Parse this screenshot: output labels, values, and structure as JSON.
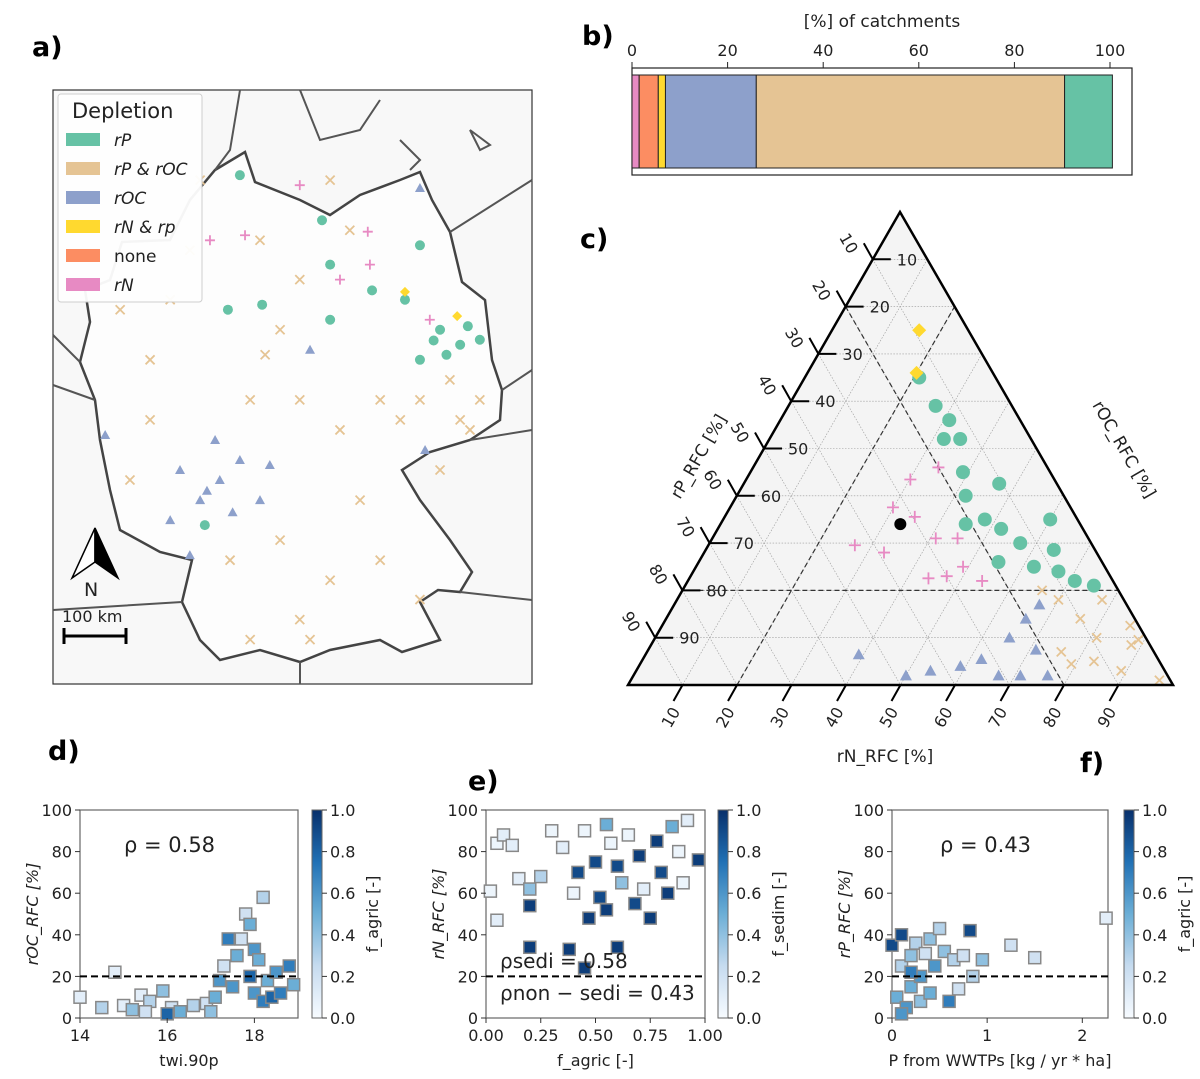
{
  "panel_labels": {
    "a": "a)",
    "b": "b)",
    "c": "c)",
    "d": "d)",
    "e": "e)",
    "f": "f)"
  },
  "colors": {
    "rP": "#66c2a5",
    "rP_rOC": "#e5c494",
    "rOC": "#8da0cb",
    "rN_rp": "#ffd92f",
    "none": "#fc8d62",
    "rN": "#e78ac3",
    "colormap": "Blues"
  },
  "map": {
    "legend": {
      "title": "Depletion",
      "items": [
        {
          "key": "rP",
          "label": "rP",
          "marker": "circle"
        },
        {
          "key": "rP_rOC",
          "label": "rP & rOC",
          "marker": "x"
        },
        {
          "key": "rOC",
          "label": "rOC",
          "marker": "triangle"
        },
        {
          "key": "rN_rp",
          "label": "rN & rp",
          "marker": "diamond"
        },
        {
          "key": "none",
          "label": "none",
          "marker": "square"
        },
        {
          "key": "rN",
          "label": "rN",
          "marker": "plus"
        }
      ]
    },
    "north_label": "N",
    "scale_label": "100 km",
    "points": {
      "rP": [
        [
          12.26,
          52.5
        ],
        [
          13.03,
          52.37
        ],
        [
          13.85,
          51.95
        ],
        [
          14.32,
          51.74
        ],
        [
          14.78,
          51.81
        ],
        [
          13.38,
          51.53
        ],
        [
          11.28,
          52.09
        ],
        [
          9.69,
          52.3
        ],
        [
          8.89,
          52.23
        ],
        [
          13.38,
          53.13
        ],
        [
          11.09,
          53.48
        ],
        [
          9.17,
          54.11
        ],
        [
          8.35,
          49.22
        ],
        [
          11.28,
          52.86
        ],
        [
          14.0,
          51.6
        ],
        [
          14.5,
          52.0
        ],
        [
          13.7,
          51.8
        ]
      ],
      "rOC": [
        [
          7.77,
          49.99
        ],
        [
          8.7,
          49.85
        ],
        [
          9.17,
          50.13
        ],
        [
          8.24,
          49.57
        ],
        [
          7.54,
          49.29
        ],
        [
          9.64,
          49.57
        ],
        [
          9.87,
          50.06
        ],
        [
          8.59,
          50.41
        ],
        [
          6.02,
          50.48
        ],
        [
          8.0,
          48.8
        ],
        [
          13.38,
          53.93
        ],
        [
          10.81,
          51.67
        ],
        [
          13.5,
          50.27
        ],
        [
          8.4,
          49.7
        ],
        [
          9.0,
          49.4
        ]
      ],
      "rP_rOC": [
        [
          6.37,
          52.23
        ],
        [
          7.07,
          51.53
        ],
        [
          8.0,
          53.06
        ],
        [
          9.64,
          53.2
        ],
        [
          10.57,
          52.65
        ],
        [
          10.11,
          51.95
        ],
        [
          11.74,
          53.34
        ],
        [
          12.45,
          50.97
        ],
        [
          13.38,
          50.97
        ],
        [
          14.08,
          51.25
        ],
        [
          14.78,
          50.97
        ],
        [
          14.32,
          50.69
        ],
        [
          12.92,
          50.69
        ],
        [
          11.51,
          50.55
        ],
        [
          10.57,
          50.97
        ],
        [
          9.41,
          50.97
        ],
        [
          7.07,
          50.69
        ],
        [
          6.6,
          49.85
        ],
        [
          8.94,
          48.73
        ],
        [
          10.11,
          49.01
        ],
        [
          11.28,
          48.45
        ],
        [
          12.45,
          48.73
        ],
        [
          13.38,
          48.18
        ],
        [
          10.57,
          47.9
        ],
        [
          9.41,
          47.62
        ],
        [
          13.85,
          49.99
        ],
        [
          14.55,
          50.55
        ],
        [
          8.24,
          54.04
        ],
        [
          11.28,
          54.04
        ],
        [
          7.54,
          52.37
        ],
        [
          9.76,
          51.6
        ],
        [
          11.98,
          49.57
        ],
        [
          10.81,
          47.62
        ]
      ],
      "rN": [
        [
          12.21,
          52.86
        ],
        [
          11.51,
          52.65
        ],
        [
          13.61,
          52.09
        ],
        [
          12.16,
          53.32
        ],
        [
          10.57,
          53.97
        ],
        [
          8.47,
          53.2
        ],
        [
          9.29,
          53.27
        ]
      ],
      "rN_rp": [
        [
          13.03,
          52.48
        ],
        [
          14.25,
          52.14
        ]
      ]
    }
  },
  "chart_data": [
    {
      "panel": "b",
      "type": "bar",
      "orientation": "horizontal-stacked",
      "title": "[%] of catchments",
      "xlim": [
        0,
        105
      ],
      "xticks": [
        "0",
        "20",
        "40",
        "60",
        "80",
        "100"
      ],
      "segments": [
        {
          "key": "rN",
          "value": 1.5
        },
        {
          "key": "none",
          "value": 4
        },
        {
          "key": "rN_rp",
          "value": 1.5
        },
        {
          "key": "rOC",
          "value": 19
        },
        {
          "key": "rP_rOC",
          "value": 64.5
        },
        {
          "key": "rP",
          "value": 10
        }
      ]
    },
    {
      "panel": "c",
      "type": "scatter",
      "subtype": "ternary",
      "axes": {
        "left": "rP_RFC [%]",
        "right": "rOC_RFC [%]",
        "bottom": "rN_RFC [%]"
      },
      "ticks": [
        "10",
        "20",
        "30",
        "40",
        "50",
        "60",
        "70",
        "80",
        "90"
      ],
      "thresholds_percent": {
        "rOC": 20,
        "rN": 20,
        "rP": 20
      },
      "point_order": [
        "rN",
        "rP",
        "rOC"
      ],
      "points": {
        "rN_rp": [
          [
            16,
            9,
            75
          ],
          [
            20,
            14,
            66
          ]
        ],
        "rP": [
          [
            21,
            14,
            65
          ],
          [
            27,
            14,
            59
          ],
          [
            31,
            13,
            56
          ],
          [
            32,
            16,
            52
          ],
          [
            35,
            13,
            52
          ],
          [
            39,
            16,
            45
          ],
          [
            45,
            12,
            44
          ],
          [
            42,
            18,
            40
          ],
          [
            48,
            17,
            35
          ],
          [
            52,
            15,
            33
          ],
          [
            57,
            13,
            30
          ],
          [
            62,
            9,
            30
          ],
          [
            55,
            19,
            26
          ],
          [
            62,
            13,
            25
          ],
          [
            67,
            9,
            24
          ],
          [
            71,
            7,
            22
          ],
          [
            75,
            4,
            21
          ],
          [
            60,
            5,
            35
          ],
          [
            45,
            21,
            34
          ]
        ],
        "rN": [
          [
            34,
            20,
            46
          ],
          [
            32,
            25,
            42
          ],
          [
            28,
            34,
            39
          ],
          [
            33,
            31,
            37
          ],
          [
            25,
            45,
            31
          ],
          [
            33,
            39,
            28
          ],
          [
            41,
            28,
            31
          ],
          [
            45,
            24,
            31
          ],
          [
            42,
            35,
            24
          ],
          [
            49,
            26,
            25
          ],
          [
            54,
            24,
            22
          ],
          [
            47,
            30,
            23
          ]
        ],
        "rOC": [
          [
            41,
            53,
            5
          ],
          [
            54,
            43,
            3
          ],
          [
            59,
            37,
            4
          ],
          [
            64,
            31,
            4
          ],
          [
            65,
            25,
            10
          ],
          [
            66,
            20,
            14
          ],
          [
            67,
            16,
            17
          ],
          [
            71,
            27,
            2
          ],
          [
            76,
            22,
            2
          ],
          [
            73,
            20,
            6
          ],
          [
            67,
            31,
            2
          ],
          [
            50,
            48,
            2
          ]
        ],
        "rP_rOC": [
          [
            70,
            12,
            18
          ],
          [
            78,
            4,
            18
          ],
          [
            76,
            10,
            14
          ],
          [
            84,
            3,
            14
          ],
          [
            76,
            17,
            7
          ],
          [
            81,
            9,
            10
          ],
          [
            90,
            2,
            7
          ],
          [
            81,
            15,
            3
          ],
          [
            89,
            8,
            3
          ],
          [
            97,
            2,
            1
          ],
          [
            66,
            14,
            20
          ],
          [
            87,
            3,
            11
          ],
          [
            83,
            12,
            5
          ]
        ],
        "reference": [
          [
            33,
            33,
            34
          ]
        ]
      }
    },
    {
      "panel": "d",
      "type": "scatter",
      "xlabel": "twi.90p",
      "ylabel": "rOC_RFC [%]",
      "xlim": [
        14,
        19
      ],
      "ylim": [
        0,
        100
      ],
      "xticks": [
        "14",
        "16",
        "18"
      ],
      "yticks": [
        "0",
        "20",
        "40",
        "60",
        "80",
        "100"
      ],
      "threshold": 20,
      "annotation": "ρ = 0.58",
      "colorbar": {
        "label": "f_agric [-]",
        "range": [
          0,
          1
        ],
        "ticks": [
          "0.0",
          "0.2",
          "0.4",
          "0.6",
          "0.8",
          "1.0"
        ]
      },
      "points": [
        [
          14.0,
          10,
          0.1
        ],
        [
          14.5,
          5,
          0.3
        ],
        [
          14.8,
          22,
          0.1
        ],
        [
          15.0,
          6,
          0.1
        ],
        [
          15.2,
          4,
          0.4
        ],
        [
          15.4,
          11,
          0.1
        ],
        [
          15.6,
          8,
          0.3
        ],
        [
          15.9,
          13,
          0.4
        ],
        [
          16.1,
          5,
          0.2
        ],
        [
          16.3,
          3,
          0.5
        ],
        [
          16.6,
          6,
          0.3
        ],
        [
          16.9,
          7,
          0.2
        ],
        [
          17.1,
          10,
          0.5
        ],
        [
          17.2,
          18,
          0.6
        ],
        [
          17.3,
          25,
          0.2
        ],
        [
          17.4,
          38,
          0.7
        ],
        [
          17.5,
          15,
          0.6
        ],
        [
          17.6,
          30,
          0.5
        ],
        [
          17.7,
          38,
          0.2
        ],
        [
          17.8,
          50,
          0.2
        ],
        [
          17.9,
          45,
          0.5
        ],
        [
          17.9,
          20,
          0.8
        ],
        [
          18.0,
          12,
          0.6
        ],
        [
          18.0,
          33,
          0.6
        ],
        [
          18.1,
          28,
          0.5
        ],
        [
          18.2,
          58,
          0.3
        ],
        [
          18.2,
          8,
          0.7
        ],
        [
          18.3,
          18,
          0.5
        ],
        [
          18.4,
          10,
          0.8
        ],
        [
          18.5,
          22,
          0.6
        ],
        [
          18.6,
          12,
          0.7
        ],
        [
          18.8,
          25,
          0.7
        ],
        [
          18.9,
          16,
          0.5
        ],
        [
          17.0,
          3,
          0.4
        ],
        [
          16.0,
          2,
          0.8
        ],
        [
          15.5,
          3,
          0.2
        ]
      ]
    },
    {
      "panel": "e",
      "type": "scatter",
      "xlabel": "f_agric [-]",
      "ylabel": "rN_RFC [%]",
      "xlim": [
        0,
        1
      ],
      "ylim": [
        0,
        100
      ],
      "xticks": [
        "0.00",
        "0.25",
        "0.50",
        "0.75",
        "1.00"
      ],
      "yticks": [
        "0",
        "20",
        "40",
        "60",
        "80",
        "100"
      ],
      "threshold": 20,
      "annotations": [
        "ρsedi = 0.58",
        "ρnon − sedi = 0.43"
      ],
      "colorbar": {
        "label": "f_sedim [-]",
        "range": [
          0,
          1
        ],
        "ticks": [
          "0.0",
          "0.2",
          "0.4",
          "0.6",
          "0.8",
          "1.0"
        ]
      },
      "points": [
        [
          0.02,
          61,
          0.05
        ],
        [
          0.05,
          47,
          0.1
        ],
        [
          0.05,
          84,
          0.05
        ],
        [
          0.08,
          88,
          0.1
        ],
        [
          0.12,
          83,
          0.1
        ],
        [
          0.15,
          67,
          0.1
        ],
        [
          0.2,
          62,
          0.4
        ],
        [
          0.2,
          54,
          0.95
        ],
        [
          0.2,
          34,
          0.95
        ],
        [
          0.25,
          68,
          0.3
        ],
        [
          0.3,
          90,
          0.05
        ],
        [
          0.35,
          82,
          0.1
        ],
        [
          0.38,
          33,
          0.95
        ],
        [
          0.4,
          60,
          0.05
        ],
        [
          0.45,
          24,
          0.95
        ],
        [
          0.45,
          90,
          0.05
        ],
        [
          0.47,
          48,
          0.95
        ],
        [
          0.5,
          75,
          0.9
        ],
        [
          0.52,
          58,
          0.9
        ],
        [
          0.55,
          93,
          0.5
        ],
        [
          0.57,
          84,
          0.05
        ],
        [
          0.6,
          34,
          0.95
        ],
        [
          0.6,
          73,
          0.9
        ],
        [
          0.62,
          65,
          0.4
        ],
        [
          0.65,
          88,
          0.05
        ],
        [
          0.68,
          55,
          0.9
        ],
        [
          0.7,
          78,
          0.95
        ],
        [
          0.72,
          62,
          0.1
        ],
        [
          0.75,
          48,
          0.95
        ],
        [
          0.78,
          85,
          0.95
        ],
        [
          0.8,
          70,
          0.9
        ],
        [
          0.83,
          60,
          0.95
        ],
        [
          0.85,
          92,
          0.5
        ],
        [
          0.88,
          80,
          0.05
        ],
        [
          0.9,
          65,
          0.05
        ],
        [
          0.92,
          95,
          0.1
        ],
        [
          0.97,
          76,
          0.95
        ],
        [
          0.55,
          52,
          0.95
        ],
        [
          0.42,
          70,
          0.9
        ]
      ]
    },
    {
      "panel": "f",
      "type": "scatter",
      "xlabel": "P from WWTPs [kg / yr * ha]",
      "ylabel": "rP_RFC [%]",
      "xlim": [
        0,
        2.27
      ],
      "ylim": [
        0,
        100
      ],
      "xticks": [
        "0",
        "1",
        "2"
      ],
      "yticks": [
        "0",
        "20",
        "40",
        "60",
        "80",
        "100"
      ],
      "threshold": 20,
      "annotation": "ρ = 0.43",
      "colorbar": {
        "label": "f_agric [-]",
        "range": [
          0,
          1
        ],
        "ticks": [
          "0.0",
          "0.2",
          "0.4",
          "0.6",
          "0.8",
          "1.0"
        ]
      },
      "points": [
        [
          0.0,
          35,
          0.9
        ],
        [
          0.05,
          10,
          0.5
        ],
        [
          0.1,
          40,
          0.9
        ],
        [
          0.1,
          25,
          0.3
        ],
        [
          0.15,
          5,
          0.6
        ],
        [
          0.2,
          30,
          0.4
        ],
        [
          0.2,
          15,
          0.5
        ],
        [
          0.25,
          36,
          0.3
        ],
        [
          0.3,
          20,
          0.6
        ],
        [
          0.3,
          8,
          0.4
        ],
        [
          0.35,
          31,
          0.2
        ],
        [
          0.4,
          38,
          0.4
        ],
        [
          0.4,
          12,
          0.5
        ],
        [
          0.45,
          25,
          0.6
        ],
        [
          0.5,
          43,
          0.3
        ],
        [
          0.55,
          32,
          0.4
        ],
        [
          0.6,
          8,
          0.7
        ],
        [
          0.65,
          28,
          0.3
        ],
        [
          0.7,
          14,
          0.2
        ],
        [
          0.75,
          30,
          0.2
        ],
        [
          0.82,
          42,
          0.9
        ],
        [
          0.85,
          20,
          0.3
        ],
        [
          0.95,
          28,
          0.4
        ],
        [
          1.25,
          35,
          0.2
        ],
        [
          1.5,
          29,
          0.2
        ],
        [
          2.25,
          48,
          0.1
        ],
        [
          0.1,
          2,
          0.6
        ],
        [
          0.2,
          22,
          0.7
        ]
      ]
    }
  ]
}
